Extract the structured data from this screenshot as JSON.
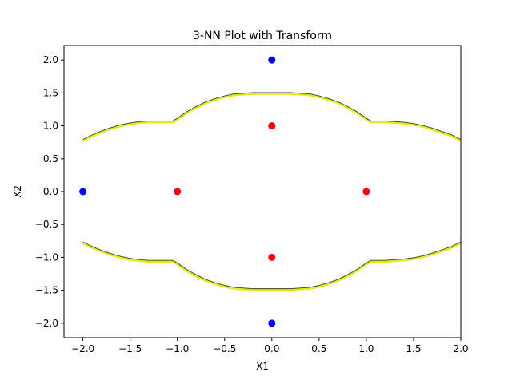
{
  "chart_data": {
    "type": "scatter",
    "title": "3-NN Plot with Transform",
    "xlabel": "X1",
    "ylabel": "X2",
    "xlim": [
      -2.2,
      2.0
    ],
    "ylim": [
      -2.22,
      2.22
    ],
    "xticks": [
      -2.0,
      -1.5,
      -1.0,
      -0.5,
      0.0,
      0.5,
      1.0,
      1.5,
      2.0
    ],
    "xtick_labels": [
      "−2.0",
      "−1.5",
      "−1.0",
      "−0.5",
      "0.0",
      "0.5",
      "1.0",
      "1.5",
      "2.0"
    ],
    "yticks": [
      2.0,
      1.5,
      1.0,
      0.5,
      0.0,
      -0.5,
      -1.0,
      -1.5,
      -2.0
    ],
    "ytick_labels": [
      "2.0",
      "1.5",
      "1.0",
      "0.5",
      "0.0",
      "−0.5",
      "−1.0",
      "−1.5",
      "−2.0"
    ],
    "grid": false,
    "series": [
      {
        "color": "#0000ff",
        "points": [
          [
            0,
            2
          ],
          [
            -2,
            0
          ],
          [
            0,
            -2
          ]
        ]
      },
      {
        "color": "#ff0000",
        "points": [
          [
            0,
            1
          ],
          [
            -1,
            0
          ],
          [
            1,
            0
          ],
          [
            0,
            -1
          ]
        ]
      }
    ],
    "boundaries": [
      {
        "color": "#e6e619",
        "edge_color": "#2d4d2d",
        "points": [
          [
            -2.0,
            0.78
          ],
          [
            -1.9,
            0.85
          ],
          [
            -1.8,
            0.91
          ],
          [
            -1.7,
            0.96
          ],
          [
            -1.6,
            1.0
          ],
          [
            -1.5,
            1.03
          ],
          [
            -1.4,
            1.05
          ],
          [
            -1.3,
            1.06
          ],
          [
            -1.2,
            1.06
          ],
          [
            -1.1,
            1.06
          ],
          [
            -1.05,
            1.06
          ],
          [
            -1.0,
            1.1
          ],
          [
            -0.9,
            1.2
          ],
          [
            -0.8,
            1.28
          ],
          [
            -0.7,
            1.35
          ],
          [
            -0.6,
            1.4
          ],
          [
            -0.5,
            1.44
          ],
          [
            -0.4,
            1.47
          ],
          [
            -0.3,
            1.48
          ],
          [
            -0.2,
            1.49
          ],
          [
            -0.1,
            1.49
          ],
          [
            0.0,
            1.49
          ],
          [
            0.1,
            1.49
          ],
          [
            0.2,
            1.49
          ],
          [
            0.3,
            1.48
          ],
          [
            0.4,
            1.47
          ],
          [
            0.5,
            1.44
          ],
          [
            0.6,
            1.4
          ],
          [
            0.7,
            1.35
          ],
          [
            0.8,
            1.28
          ],
          [
            0.9,
            1.2
          ],
          [
            1.0,
            1.1
          ],
          [
            1.05,
            1.06
          ],
          [
            1.1,
            1.06
          ],
          [
            1.2,
            1.06
          ],
          [
            1.3,
            1.05
          ],
          [
            1.4,
            1.04
          ],
          [
            1.5,
            1.02
          ],
          [
            1.6,
            0.99
          ],
          [
            1.7,
            0.95
          ],
          [
            1.8,
            0.9
          ],
          [
            1.9,
            0.85
          ],
          [
            2.0,
            0.78
          ]
        ]
      },
      {
        "color": "#e6e619",
        "edge_color": "#2d4d2d",
        "points": [
          [
            -2.0,
            -0.78
          ],
          [
            -1.9,
            -0.85
          ],
          [
            -1.8,
            -0.91
          ],
          [
            -1.7,
            -0.96
          ],
          [
            -1.6,
            -1.0
          ],
          [
            -1.5,
            -1.03
          ],
          [
            -1.4,
            -1.05
          ],
          [
            -1.3,
            -1.06
          ],
          [
            -1.2,
            -1.06
          ],
          [
            -1.1,
            -1.06
          ],
          [
            -1.05,
            -1.06
          ],
          [
            -1.0,
            -1.1
          ],
          [
            -0.9,
            -1.2
          ],
          [
            -0.8,
            -1.28
          ],
          [
            -0.7,
            -1.35
          ],
          [
            -0.6,
            -1.4
          ],
          [
            -0.5,
            -1.44
          ],
          [
            -0.4,
            -1.47
          ],
          [
            -0.3,
            -1.48
          ],
          [
            -0.2,
            -1.49
          ],
          [
            -0.1,
            -1.49
          ],
          [
            0.0,
            -1.49
          ],
          [
            0.1,
            -1.49
          ],
          [
            0.2,
            -1.49
          ],
          [
            0.3,
            -1.48
          ],
          [
            0.4,
            -1.47
          ],
          [
            0.5,
            -1.44
          ],
          [
            0.6,
            -1.4
          ],
          [
            0.7,
            -1.35
          ],
          [
            0.8,
            -1.28
          ],
          [
            0.9,
            -1.2
          ],
          [
            1.0,
            -1.1
          ],
          [
            1.05,
            -1.06
          ],
          [
            1.1,
            -1.06
          ],
          [
            1.2,
            -1.06
          ],
          [
            1.3,
            -1.05
          ],
          [
            1.4,
            -1.04
          ],
          [
            1.5,
            -1.02
          ],
          [
            1.6,
            -0.99
          ],
          [
            1.7,
            -0.95
          ],
          [
            1.8,
            -0.9
          ],
          [
            1.9,
            -0.85
          ],
          [
            2.0,
            -0.78
          ]
        ]
      }
    ]
  }
}
